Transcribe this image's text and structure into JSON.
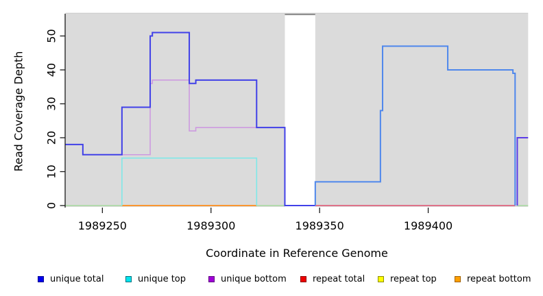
{
  "chart_data": {
    "type": "line",
    "subtype": "step-coverage-plot",
    "title": "",
    "xlabel": "Coordinate in Reference Genome",
    "ylabel": "Read Coverage Depth",
    "xlim": [
      1989233,
      1989446
    ],
    "ylim": [
      0,
      56
    ],
    "x_ticks": [
      "1989250",
      "1989300",
      "1989350",
      "1989400"
    ],
    "x_tick_values": [
      1989250,
      1989300,
      1989350,
      1989400
    ],
    "y_ticks": [
      "0",
      "10",
      "20",
      "30",
      "40",
      "50"
    ],
    "y_tick_values": [
      0,
      10,
      20,
      30,
      40,
      50
    ],
    "grid": false,
    "legend_position": "bottom",
    "background": {
      "panel_color": "#DBDBDB",
      "panels_x": [
        [
          1989233,
          1989334
        ],
        [
          1989348,
          1989446
        ]
      ],
      "no_data_gap_x": [
        1989334,
        1989348
      ],
      "top_border_color": "#C8C8C8",
      "gap_top_marker_color": "#8E8E8E"
    },
    "series": [
      {
        "name": "unique total",
        "steps": [
          [
            1989233,
            18
          ],
          [
            1989241,
            15
          ],
          [
            1989259,
            29
          ],
          [
            1989272,
            50
          ],
          [
            1989273,
            51
          ],
          [
            1989290,
            36
          ],
          [
            1989293,
            37
          ],
          [
            1989321,
            23
          ],
          [
            1989334,
            0
          ],
          [
            1989348,
            7
          ],
          [
            1989378,
            28
          ],
          [
            1989379,
            47
          ],
          [
            1989409,
            40
          ],
          [
            1989439,
            39
          ],
          [
            1989440,
            0
          ],
          [
            1989441,
            20
          ],
          [
            1989446,
            20
          ]
        ]
      },
      {
        "name": "unique top",
        "steps": [
          [
            1989233,
            0
          ],
          [
            1989259,
            14
          ],
          [
            1989321,
            0
          ],
          [
            1989446,
            0
          ]
        ]
      },
      {
        "name": "unique bottom",
        "steps": [
          [
            1989259,
            15
          ],
          [
            1989272,
            36
          ],
          [
            1989273,
            37
          ],
          [
            1989290,
            22
          ],
          [
            1989293,
            23
          ],
          [
            1989334,
            0
          ],
          [
            1989441,
            20
          ],
          [
            1989446,
            20
          ]
        ]
      },
      {
        "name": "repeat total",
        "steps": [
          [
            1989233,
            0
          ],
          [
            1989446,
            0
          ]
        ]
      },
      {
        "name": "repeat top",
        "steps": [
          [
            1989233,
            0
          ],
          [
            1989446,
            0
          ]
        ]
      },
      {
        "name": "repeat bottom",
        "steps": [
          [
            1989233,
            0
          ],
          [
            1989446,
            0
          ]
        ]
      }
    ],
    "drawn_lines": [
      {
        "name": "panel-top-border",
        "color": "#C8C8C8",
        "w": 1.1,
        "pts": [
          [
            1989233,
            56.7
          ],
          [
            1989446,
            56.7
          ]
        ]
      },
      {
        "name": "gap-top-marker",
        "color": "#8E8E8E",
        "w": 2.2,
        "pts": [
          [
            1989334,
            56.35
          ],
          [
            1989348,
            56.35
          ]
        ]
      },
      {
        "name": "overlap-baseline-left",
        "color": "#A6DA9E",
        "w": 1.6,
        "pts": [
          [
            1989233,
            0
          ],
          [
            1989259,
            0
          ]
        ]
      },
      {
        "name": "overlap-baseline-mid",
        "color": "#A6DA9E",
        "w": 1.6,
        "pts": [
          [
            1989321,
            0
          ],
          [
            1989334,
            0
          ]
        ]
      },
      {
        "name": "overlap-baseline-right",
        "color": "#A6DA9E",
        "w": 1.6,
        "pts": [
          [
            1989441,
            0
          ],
          [
            1989446,
            0
          ]
        ]
      },
      {
        "name": "repeat-bottom-line",
        "color": "#FF8C19",
        "w": 1.8,
        "pts": [
          [
            1989259,
            0
          ],
          [
            1989321,
            0
          ]
        ]
      },
      {
        "name": "repeat-total-line",
        "color": "#E0506E",
        "w": 1.5,
        "pts": [
          [
            1989348,
            0
          ],
          [
            1989440,
            0
          ]
        ]
      },
      {
        "name": "unique-top-line",
        "color": "#7FE8E8",
        "w": 1.6,
        "pts": [
          [
            1989259,
            0
          ],
          [
            1989259,
            14
          ],
          [
            1989321,
            14
          ],
          [
            1989321,
            0
          ]
        ]
      },
      {
        "name": "unique-bottom-line",
        "color": "#CD9AE0",
        "w": 1.6,
        "pts": [
          [
            1989259,
            15
          ],
          [
            1989272,
            15
          ],
          [
            1989272,
            36
          ],
          [
            1989273,
            36
          ],
          [
            1989273,
            37
          ],
          [
            1989290,
            37
          ],
          [
            1989290,
            22
          ],
          [
            1989293,
            22
          ],
          [
            1989293,
            23
          ],
          [
            1989334,
            23
          ],
          [
            1989334,
            0
          ]
        ]
      },
      {
        "name": "unique-total-left",
        "color": "#4040E8",
        "w": 2,
        "pts": [
          [
            1989233,
            18
          ],
          [
            1989241,
            18
          ],
          [
            1989241,
            15
          ],
          [
            1989259,
            15
          ],
          [
            1989259,
            29
          ],
          [
            1989272,
            29
          ],
          [
            1989272,
            50
          ],
          [
            1989273,
            50
          ],
          [
            1989273,
            51
          ],
          [
            1989290,
            51
          ],
          [
            1989290,
            36
          ],
          [
            1989293,
            36
          ],
          [
            1989293,
            37
          ],
          [
            1989321,
            37
          ],
          [
            1989321,
            23
          ],
          [
            1989334,
            23
          ],
          [
            1989334,
            0
          ],
          [
            1989348,
            0
          ]
        ]
      },
      {
        "name": "unique-total-right",
        "color": "#4E87EC",
        "w": 2,
        "pts": [
          [
            1989348,
            0
          ],
          [
            1989348,
            7
          ],
          [
            1989378,
            7
          ],
          [
            1989378,
            28
          ],
          [
            1989379,
            28
          ],
          [
            1989379,
            47
          ],
          [
            1989409,
            47
          ],
          [
            1989409,
            40
          ],
          [
            1989439,
            40
          ],
          [
            1989439,
            39
          ],
          [
            1989440,
            39
          ],
          [
            1989440,
            0
          ]
        ]
      },
      {
        "name": "total-bottom-overlap",
        "color": "#5B3BE8",
        "w": 2,
        "pts": [
          [
            1989441,
            0
          ],
          [
            1989441,
            20
          ],
          [
            1989446,
            20
          ]
        ]
      }
    ]
  },
  "legend": {
    "items": [
      {
        "label": "unique total",
        "color": "#0000EE",
        "border": "#000090"
      },
      {
        "label": "unique top",
        "color": "#00E5EE",
        "border": "#00707E"
      },
      {
        "label": "unique bottom",
        "color": "#A100D9",
        "border": "#5E0080"
      },
      {
        "label": "repeat total",
        "color": "#EE0000",
        "border": "#8B0000"
      },
      {
        "label": "repeat top",
        "color": "#FFFF00",
        "border": "#8B8B00"
      },
      {
        "label": "repeat bottom",
        "color": "#FFA000",
        "border": "#A06000"
      }
    ]
  }
}
